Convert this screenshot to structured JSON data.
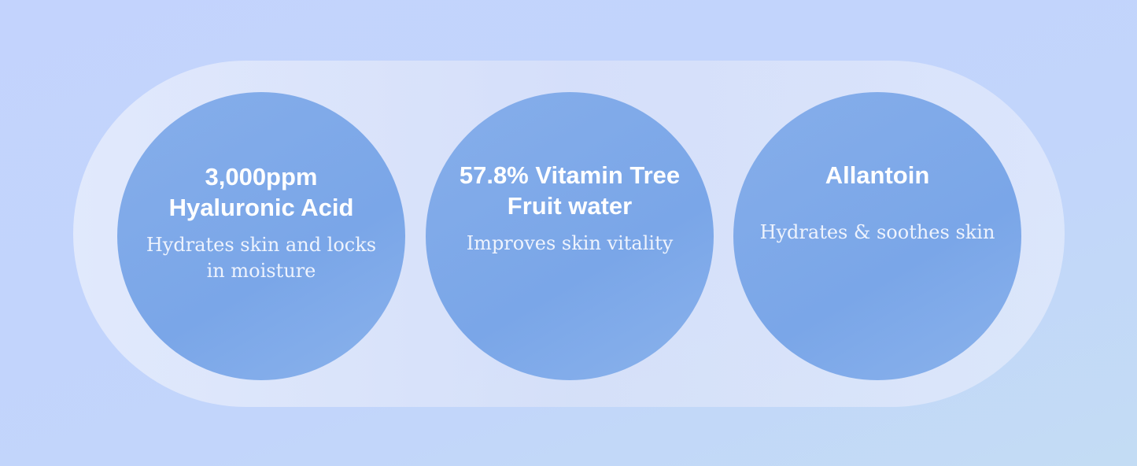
{
  "items": [
    {
      "title": "3,000ppm Hyaluronic Acid",
      "description": "Hydrates skin and locks in moisture"
    },
    {
      "title": "57.8% Vitamin Tree Fruit water",
      "description": "Improves skin vitality"
    },
    {
      "title": "Allantoin",
      "description": "Hydrates & soothes skin"
    }
  ]
}
